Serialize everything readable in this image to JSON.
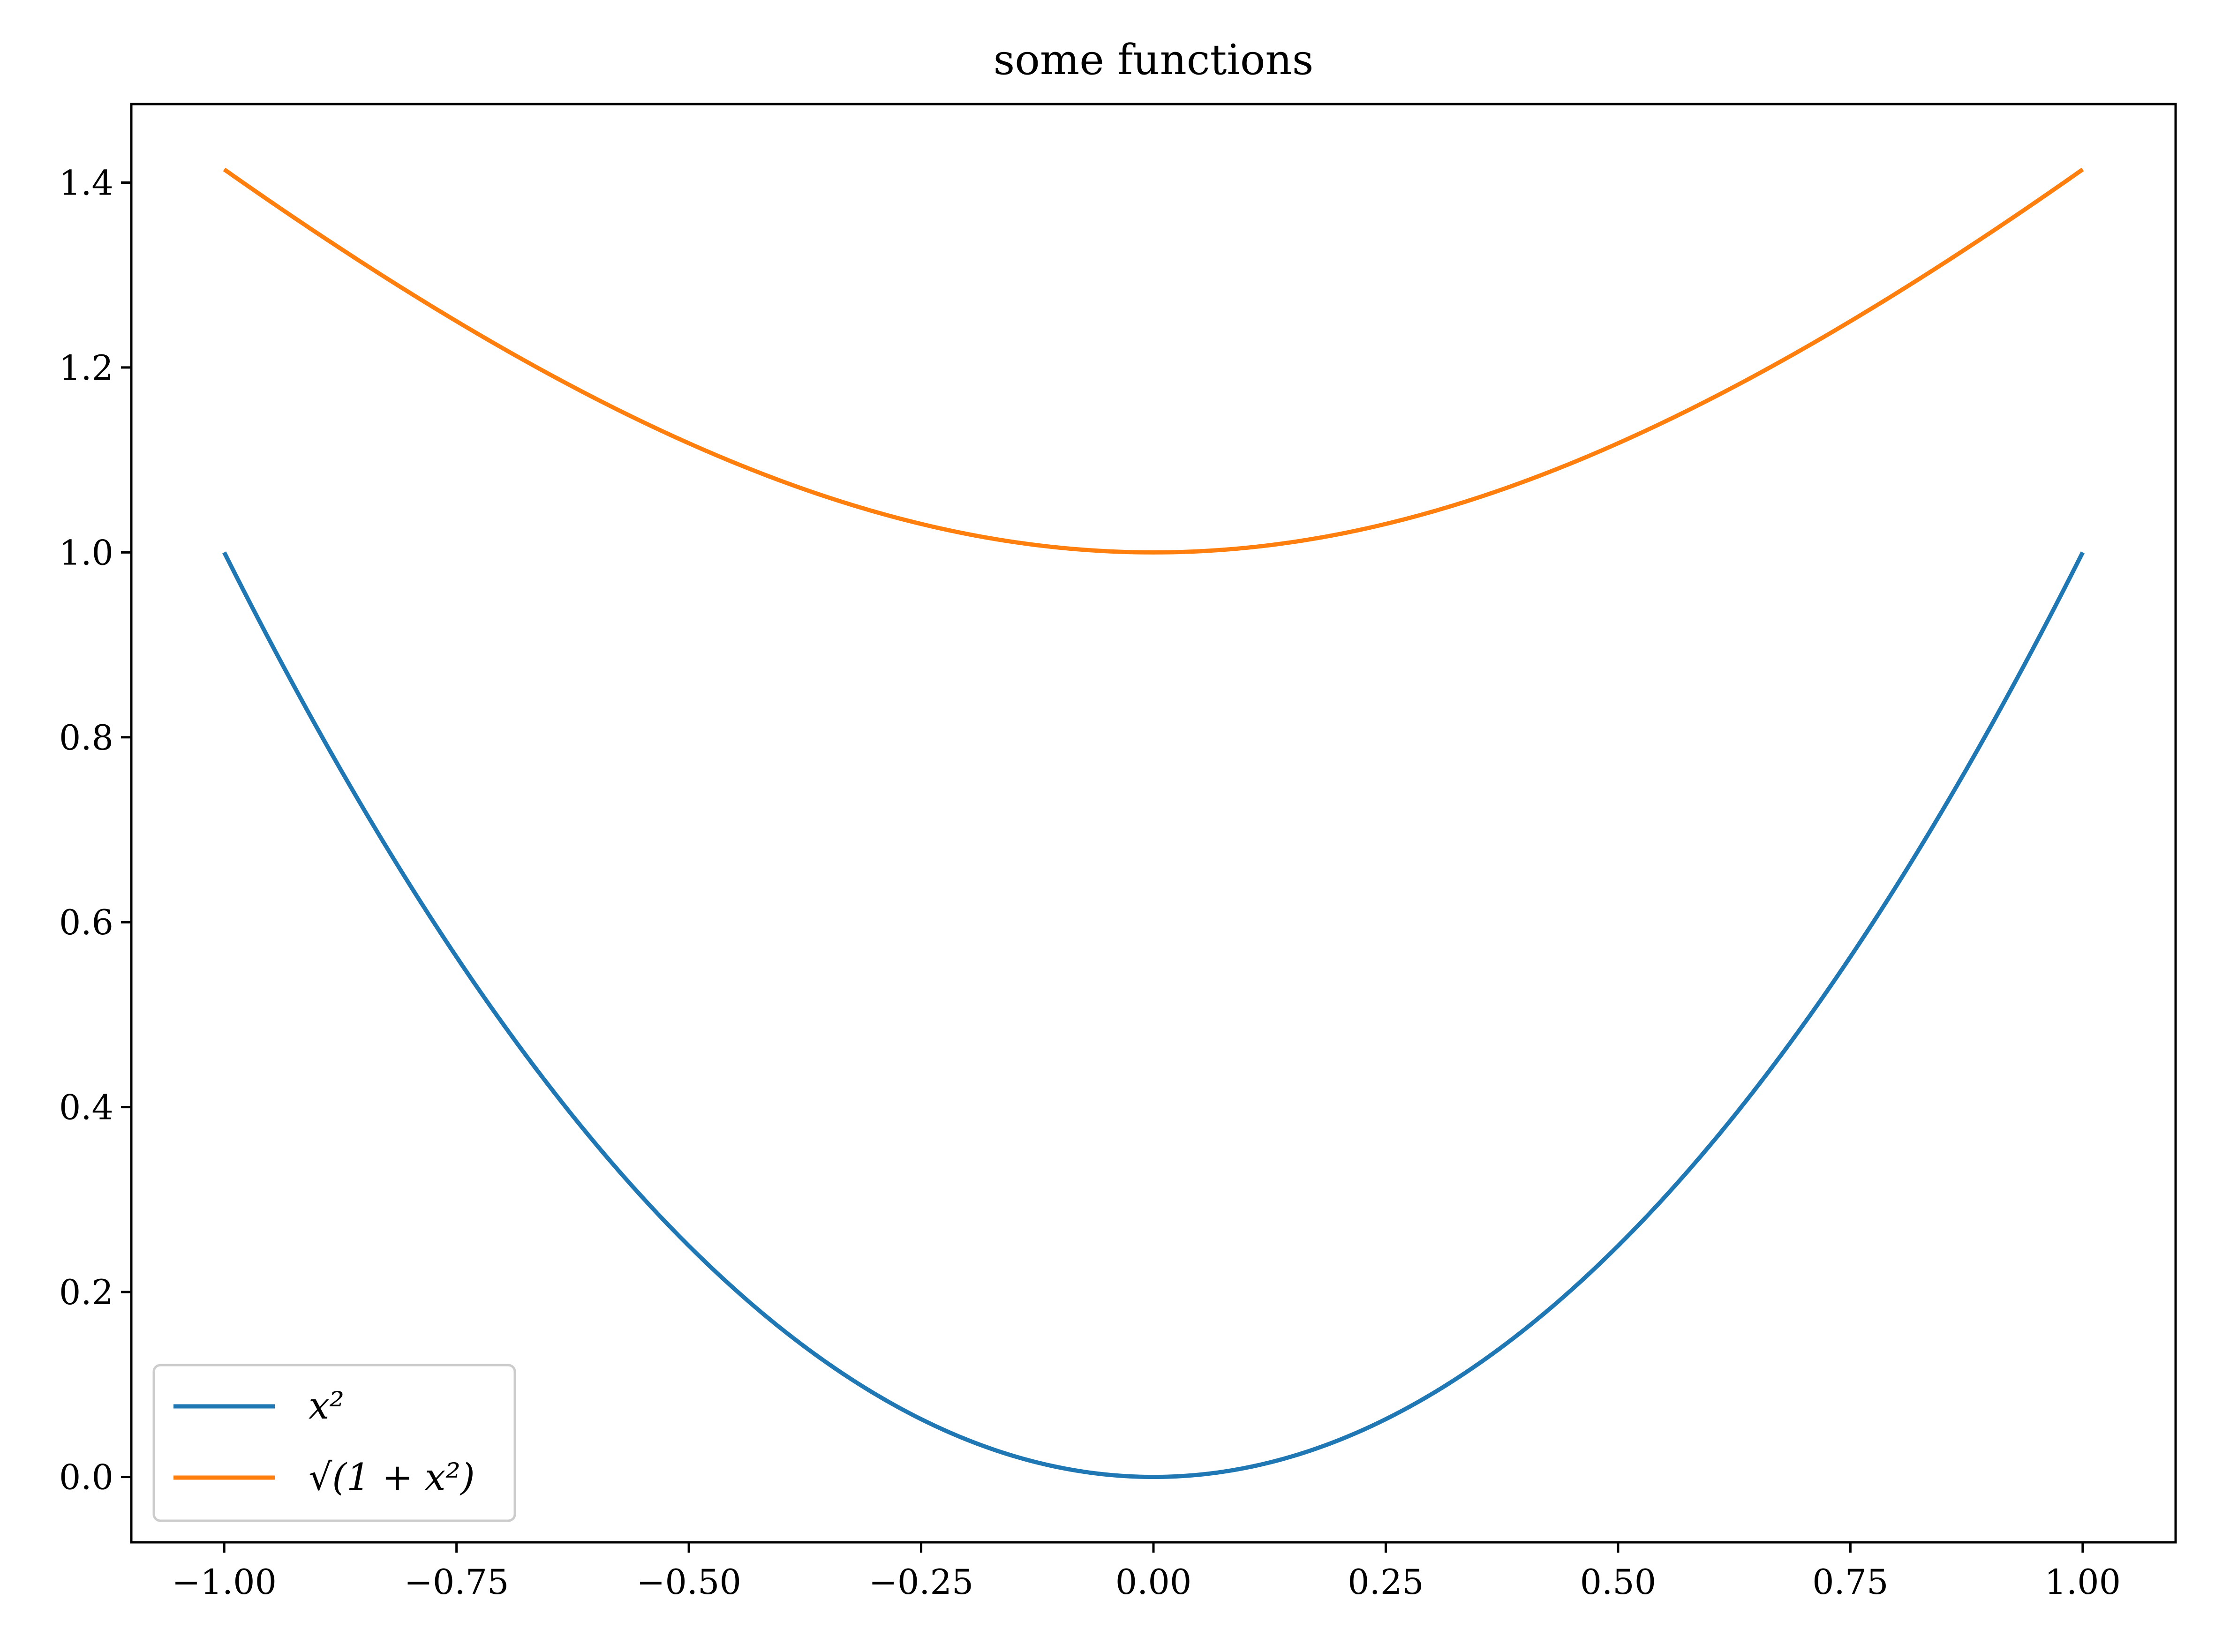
{
  "chart_data": {
    "type": "line",
    "title": "some functions",
    "xlabel": "",
    "ylabel": "",
    "xlim": [
      -1.1,
      1.1
    ],
    "ylim": [
      -0.0707,
      1.4849
    ],
    "xticks": [
      -1.0,
      -0.75,
      -0.5,
      -0.25,
      0.0,
      0.25,
      0.5,
      0.75,
      1.0
    ],
    "xtick_labels": [
      "−1.00",
      "−0.75",
      "−0.50",
      "−0.25",
      "0.00",
      "0.25",
      "0.50",
      "0.75",
      "1.00"
    ],
    "yticks": [
      0.0,
      0.2,
      0.4,
      0.6,
      0.8,
      1.0,
      1.2,
      1.4
    ],
    "ytick_labels": [
      "0.0",
      "0.2",
      "0.4",
      "0.6",
      "0.8",
      "1.0",
      "1.2",
      "1.4"
    ],
    "grid": false,
    "legend_position": "lower-left",
    "series": [
      {
        "name": "x²",
        "color": "#1f77b4",
        "x": [
          -1.0,
          -0.9,
          -0.8,
          -0.7,
          -0.6,
          -0.5,
          -0.4,
          -0.3,
          -0.2,
          -0.1,
          0.0,
          0.1,
          0.2,
          0.3,
          0.4,
          0.5,
          0.6,
          0.7,
          0.8,
          0.9,
          1.0
        ],
        "y": [
          1.0,
          0.81,
          0.64,
          0.49,
          0.36,
          0.25,
          0.16,
          0.09,
          0.04,
          0.01,
          0.0,
          0.01,
          0.04,
          0.09,
          0.16,
          0.25,
          0.36,
          0.49,
          0.64,
          0.81,
          1.0
        ]
      },
      {
        "name": "√(1 + x²)",
        "color": "#ff7f0e",
        "x": [
          -1.0,
          -0.9,
          -0.8,
          -0.7,
          -0.6,
          -0.5,
          -0.4,
          -0.3,
          -0.2,
          -0.1,
          0.0,
          0.1,
          0.2,
          0.3,
          0.4,
          0.5,
          0.6,
          0.7,
          0.8,
          0.9,
          1.0
        ],
        "y": [
          1.414,
          1.345,
          1.281,
          1.221,
          1.166,
          1.118,
          1.077,
          1.044,
          1.02,
          1.005,
          1.0,
          1.005,
          1.02,
          1.044,
          1.077,
          1.118,
          1.166,
          1.221,
          1.281,
          1.345,
          1.414
        ]
      }
    ]
  }
}
